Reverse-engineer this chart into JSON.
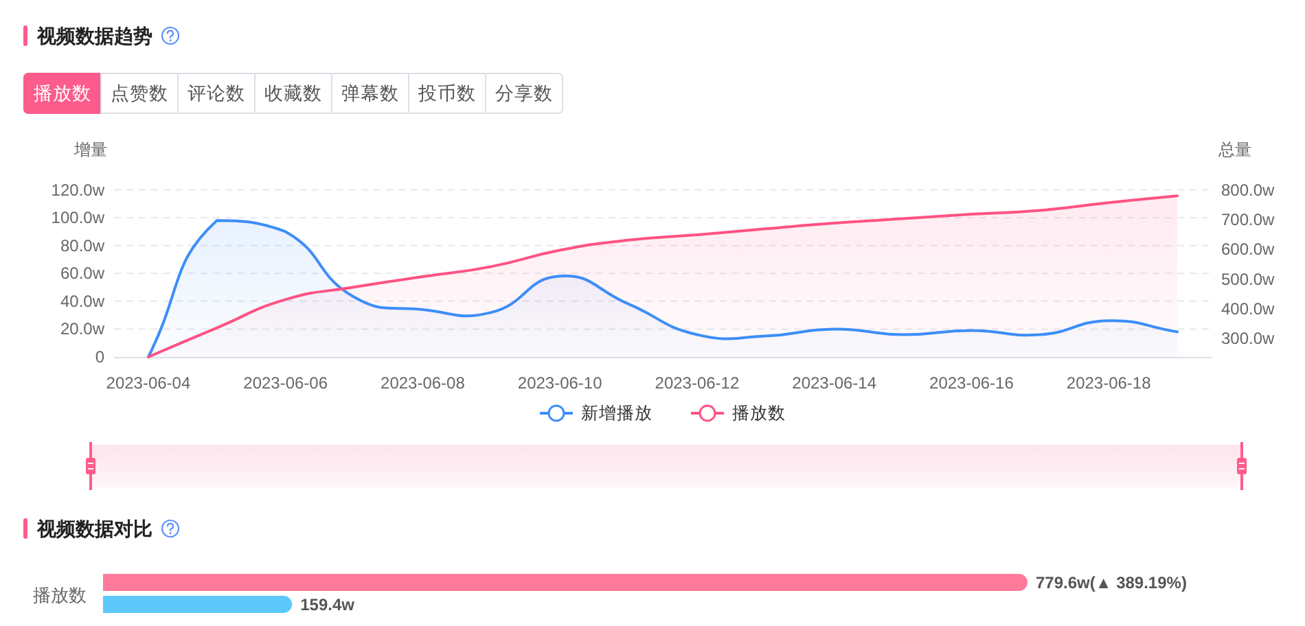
{
  "chart_data": [
    {
      "type": "other",
      "title": "视频数据趋势",
      "annotations": [
        "播放数",
        "点赞数",
        "评论数",
        "收藏数",
        "弹幕数",
        "投币数",
        "分享数"
      ]
    },
    {
      "type": "area",
      "categories": [
        "2023-06-04",
        null,
        "2023-06-06",
        null,
        "2023-06-08",
        null,
        "2023-06-10",
        null,
        "2023-06-12",
        null,
        "2023-06-14",
        null,
        "2023-06-16",
        null,
        "2023-06-18",
        null
      ],
      "ylabel": "增量",
      "y2label": "总量",
      "ylim": [
        0,
        120
      ],
      "yticks": [
        0,
        {
          "value": 20,
          "label": "20.0w"
        },
        {
          "value": 40,
          "label": "40.0w"
        },
        {
          "value": 60,
          "label": "60.0w"
        },
        {
          "value": 80,
          "label": "80.0w"
        },
        {
          "value": 100,
          "label": "100.0w"
        },
        {
          "value": 120,
          "label": "120.0w"
        }
      ],
      "y2lim": [
        238,
        800
      ],
      "y2ticks": [
        {
          "value": 300,
          "label": "300.0w"
        },
        {
          "value": 400,
          "label": "400.0w"
        },
        {
          "value": 500,
          "label": "500.0w"
        },
        {
          "value": 600,
          "label": "600.0w"
        },
        {
          "value": 700,
          "label": "700.0w"
        },
        {
          "value": 800,
          "label": "800.0w"
        }
      ],
      "grid": "y",
      "legend": "bottom",
      "marker": "none",
      "series": [
        {
          "name": "新增播放",
          "color": "#3d8ef8",
          "values": [
            0,
            98,
            90,
            43,
            34,
            32,
            58,
            38,
            16,
            15,
            20,
            16,
            19,
            16,
            26,
            18
          ]
        },
        {
          "name": "播放数",
          "color": "#ff5283",
          "axis": "y2",
          "values": [
            238,
            336,
            431,
            473,
            508,
            542,
            597,
            631,
            649,
            669,
            688,
            703,
            718,
            731,
            757,
            780
          ]
        }
      ]
    },
    {
      "type": "bar",
      "title": "视频数据对比",
      "orientation": "horizontal",
      "categories": [
        "播放数"
      ],
      "series": [
        {
          "color": "#ff7a9a",
          "values": [
            779.6
          ],
          "value_labels": [
            "779.6w(▲ 389.19%)"
          ]
        },
        {
          "color": "#5cc8fa",
          "values": [
            159.4
          ],
          "value_labels": [
            "159.4w"
          ]
        }
      ]
    }
  ]
}
